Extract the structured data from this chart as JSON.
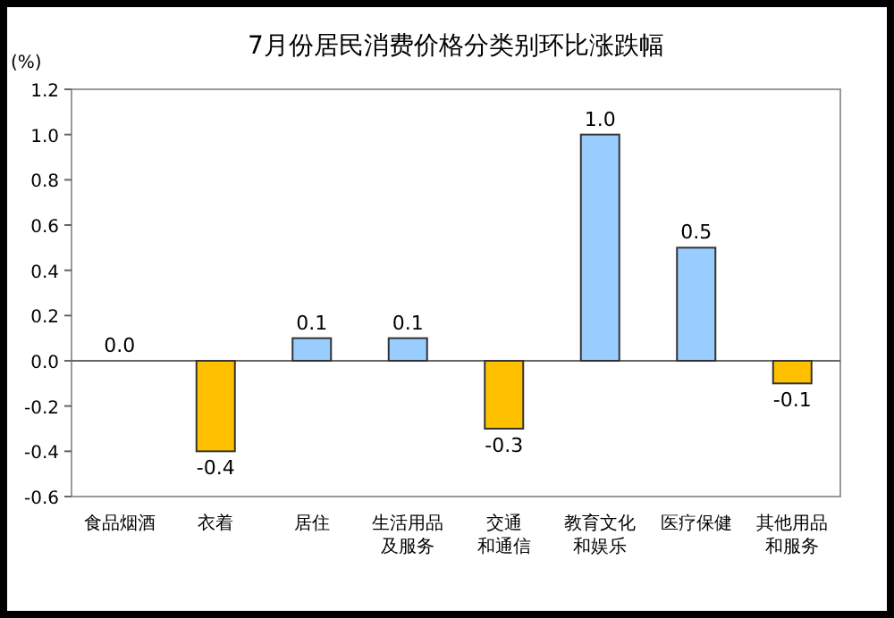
{
  "chart_data": {
    "type": "bar",
    "title": "7月份居民消费价格分类别环比涨跌幅",
    "ylabel": "(%)",
    "categories": [
      "食品烟酒",
      "衣着",
      "居住",
      "生活用品及服务",
      "交通和通信",
      "教育文化和娱乐",
      "医疗保健",
      "其他用品和服务"
    ],
    "values": [
      0.0,
      -0.4,
      0.1,
      0.1,
      -0.3,
      1.0,
      0.5,
      -0.1
    ],
    "colors": [
      "#99ccff",
      "#ffc000",
      "#99ccff",
      "#99ccff",
      "#ffc000",
      "#99ccff",
      "#99ccff",
      "#ffc000"
    ],
    "ylim": [
      -0.6,
      1.2
    ],
    "yticks": [
      {
        "value": -0.6,
        "label": "-0.6"
      },
      {
        "value": -0.4,
        "label": "-0.4"
      },
      {
        "value": -0.2,
        "label": "-0.2"
      },
      {
        "value": 0,
        "label": "0.0"
      },
      {
        "value": 0.2,
        "label": "0.2"
      },
      {
        "value": 0.4,
        "label": "0.4"
      },
      {
        "value": 0.6,
        "label": "0.6"
      },
      {
        "value": 0.8,
        "label": "0.8"
      },
      {
        "value": 1.0,
        "label": "1.0"
      },
      {
        "value": 1.2,
        "label": "1.2"
      }
    ],
    "value_labels": [
      "0.0",
      "-0.4",
      "0.1",
      "0.1",
      "-0.3",
      "1.0",
      "0.5",
      "-0.1"
    ]
  }
}
